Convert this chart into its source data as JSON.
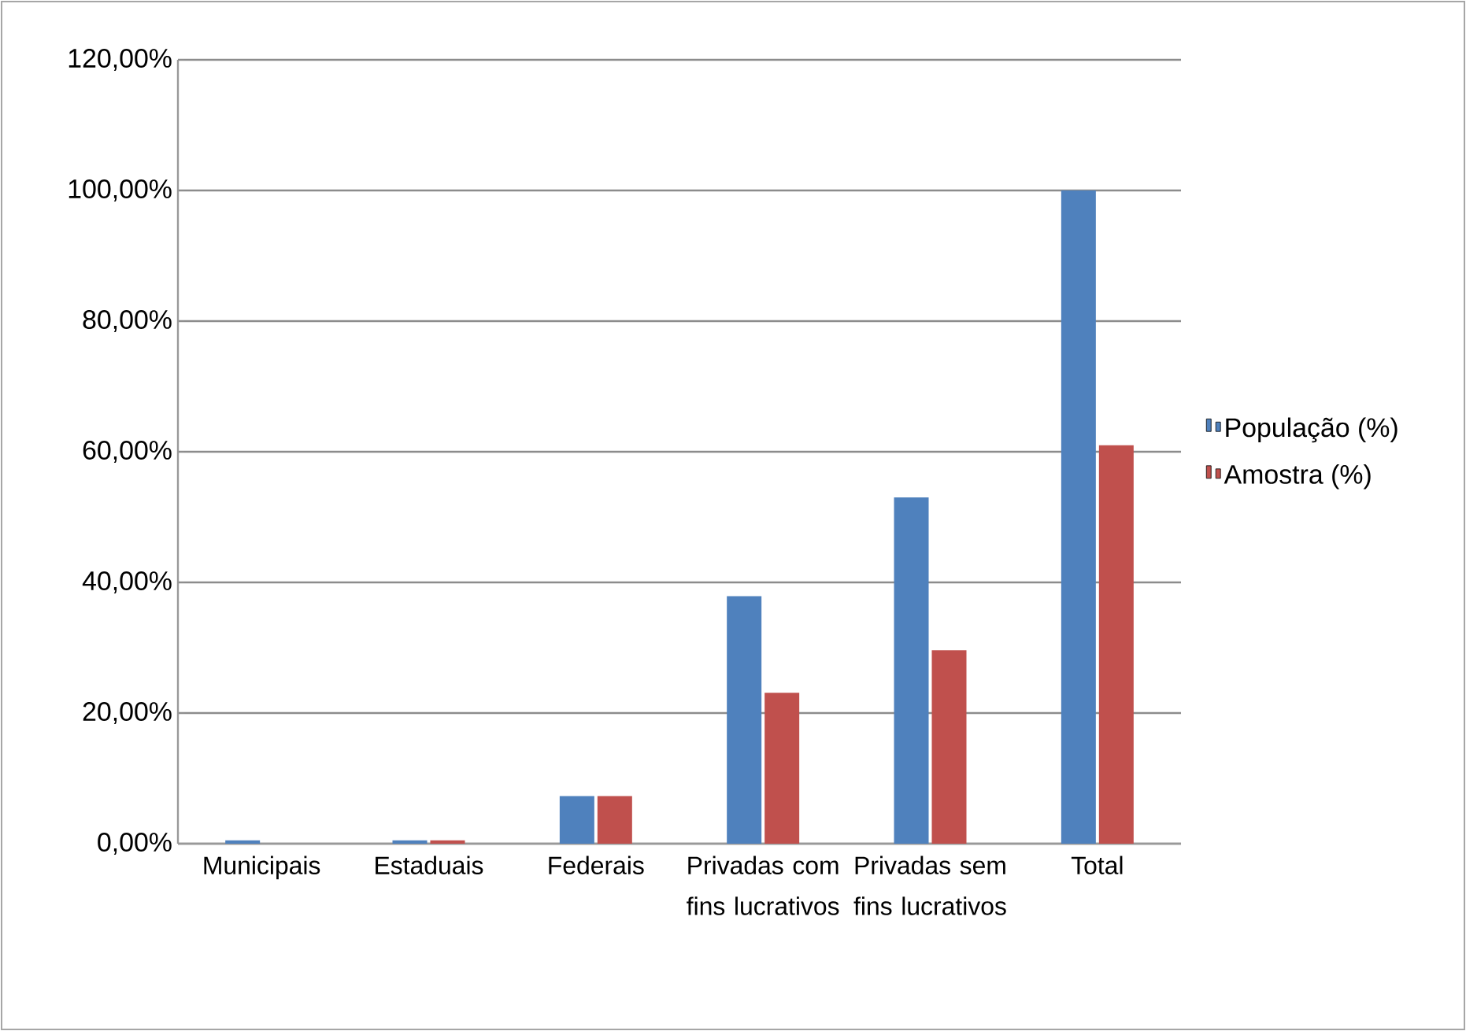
{
  "chart_data": {
    "type": "bar",
    "categories": [
      "Municipais",
      "Estaduais",
      "Federais",
      "Privadas com fins lucrativos",
      "Privadas sem fins lucrativos",
      "Total"
    ],
    "series": [
      {
        "name": "População (%)",
        "color": "#4f81bd",
        "values": [
          0.5,
          0.5,
          7.3,
          37.9,
          53.0,
          100
        ]
      },
      {
        "name": "Amostra (%)",
        "color": "#c0504d",
        "values": [
          0,
          0.5,
          7.3,
          23.1,
          29.6,
          61.0
        ]
      }
    ],
    "ylim": [
      0,
      120
    ],
    "yticks": [
      {
        "value": 0,
        "label": "0,00%"
      },
      {
        "value": 20,
        "label": "20,00%"
      },
      {
        "value": 40,
        "label": "40,00%"
      },
      {
        "value": 60,
        "label": "60,00%"
      },
      {
        "value": 80,
        "label": "80,00%"
      },
      {
        "value": 100,
        "label": "100,00%"
      },
      {
        "value": 120,
        "label": "120,00%"
      }
    ],
    "grid": "y",
    "legend": "right"
  }
}
